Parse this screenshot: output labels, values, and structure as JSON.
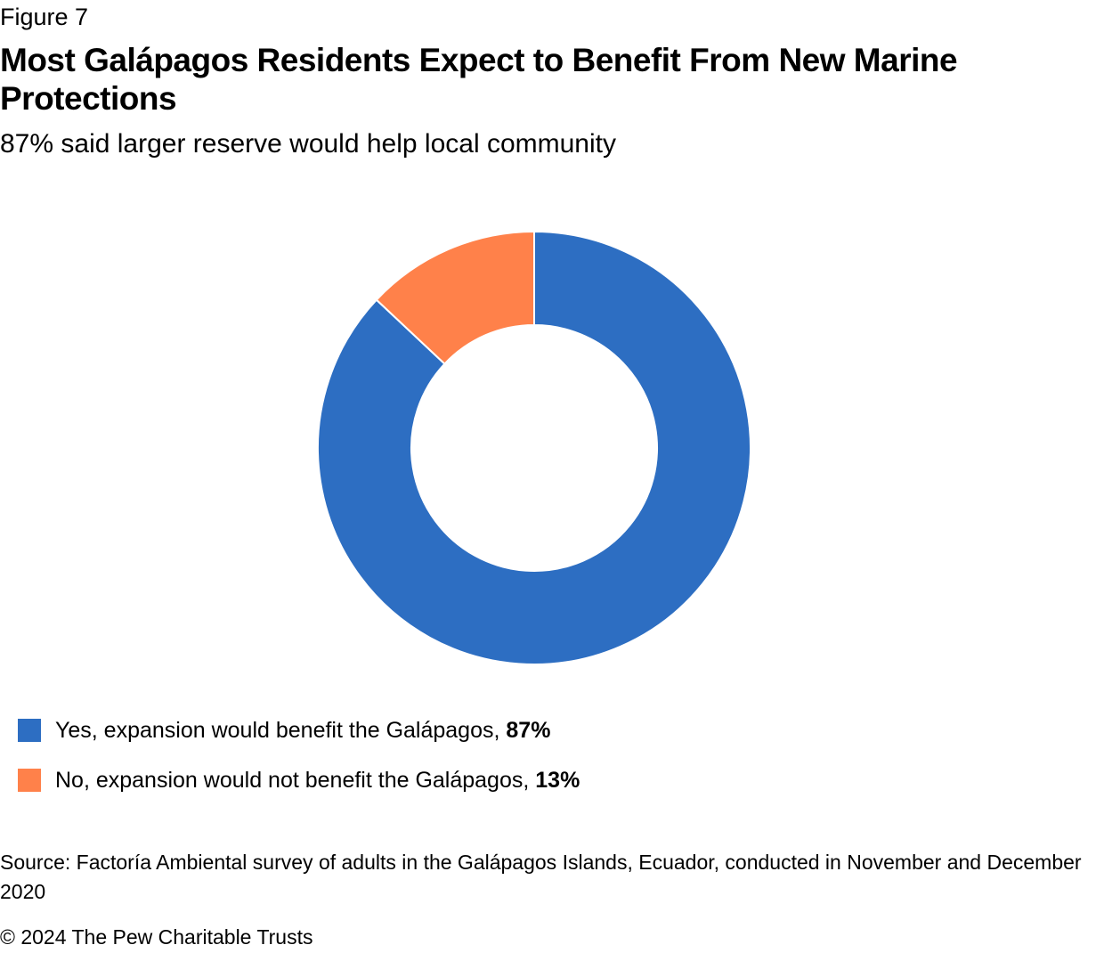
{
  "figure_label": "Figure 7",
  "title": "Most Galápagos Residents Expect to Benefit From New Marine Protections",
  "subtitle": "87% said larger reserve would help local community",
  "legend": [
    {
      "label": "Yes, expansion would benefit the Galápagos,",
      "value": "87%"
    },
    {
      "label": "No, expansion would not benefit the Galápagos,",
      "value": "13%"
    }
  ],
  "source": "Source: Factoría Ambiental survey of adults in the Galápagos Islands, Ecuador, conducted in November and December 2020",
  "copyright": "© 2024 The Pew Charitable Trusts",
  "colors": {
    "yes": "#2d6ec2",
    "no": "#ff814a"
  },
  "chart_data": {
    "type": "pie",
    "subtype": "donut",
    "categories": [
      "Yes, expansion would benefit the Galápagos",
      "No, expansion would not benefit the Galápagos"
    ],
    "values": [
      87,
      13
    ],
    "unit": "%",
    "colors": [
      "#2d6ec2",
      "#ff814a"
    ],
    "legend_position": "bottom-left",
    "start_angle": "top",
    "direction": "clockwise"
  }
}
